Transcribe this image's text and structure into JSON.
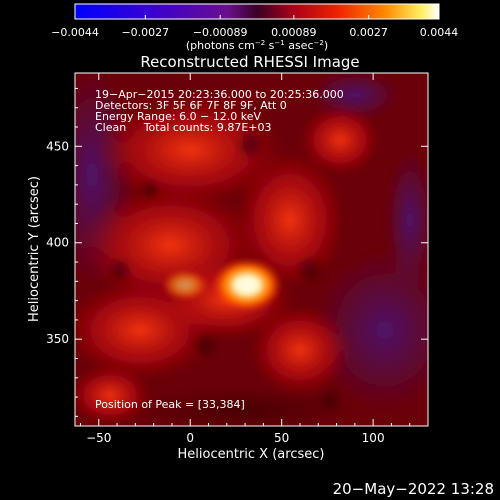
{
  "colorbar": {
    "ticks": [
      "−0.0044",
      "−0.0027",
      "−0.00089",
      "0.00089",
      "0.0027",
      "0.0044"
    ],
    "values": [
      -0.0044,
      -0.0027,
      -0.00089,
      0.00089,
      0.0027,
      0.0044
    ],
    "unit_prefix": "(photons cm",
    "unit_exp1": "−2",
    "unit_mid": " s",
    "unit_exp2": "−1",
    "unit_suffix": " asec",
    "unit_exp3": "−2",
    "unit_close": ")"
  },
  "chart_data": {
    "type": "heatmap",
    "title": "Reconstructed RHESSI Image",
    "xlabel": "Heliocentric X (arcsec)",
    "ylabel": "Heliocentric Y (arcsec)",
    "xlim": [
      -63,
      130
    ],
    "ylim": [
      305,
      488
    ],
    "xticks": [
      -50,
      0,
      50,
      100
    ],
    "yticks": [
      350,
      400,
      450
    ],
    "xtick_labels": [
      "−50",
      "0",
      "50",
      "100"
    ],
    "ytick_labels": [
      "350",
      "400",
      "450"
    ],
    "colormap": "rhessi-blue-purple-red-yellow-white",
    "peak": {
      "x": 33,
      "y": 384
    },
    "annotations": [
      "19−Apr−2015 20:23:36.000 to 20:25:36.000",
      "Detectors: 3F 5F 6F 7F 8F 9F, Att 0",
      "Energy Range: 6.0 − 12.0 keV",
      "Clean     Total counts: 9.87E+03"
    ],
    "peak_label": "Position of Peak = [33,384]"
  },
  "footer": {
    "timestamp": "20−May−2022 13:28"
  },
  "colors": {
    "background": "#000000",
    "text": "#ffffff"
  }
}
